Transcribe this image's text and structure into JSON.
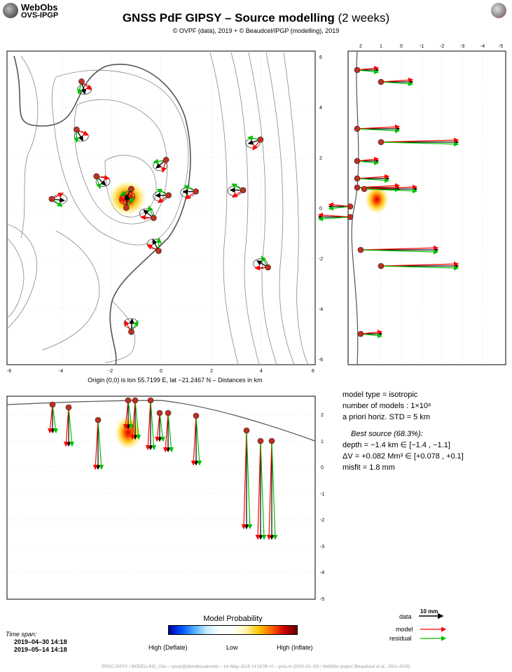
{
  "header": {
    "logo_line1": "WebObs",
    "logo_line2": "OVS-IPGP",
    "title_main": "GNSS PdF GIPSY – Source modelling",
    "title_light": " (2 weeks)",
    "subtitle": "© OVPF (data), 2019 + © Beaudcel/IPGP (modelling), 2019"
  },
  "origin_caption": "Origin (0,0) is lon 55.7199 E, lat −21.2467 N – Distances in km",
  "info": {
    "model_type": "model type = isotropic",
    "n_models": "number of models : 1×10⁶",
    "prior_std": "a priori horiz. STD = 5 km",
    "best_title": "Best source (68.3%):",
    "depth": "depth = −1.4 km ∈ [−1.4 , −1.1]",
    "dv": "ΔV = +0.082 Mm³ ∈ [+0.078 , +0.1]",
    "misfit": "misfit = 1.8 mm"
  },
  "probability": {
    "title": "Model Probability",
    "low_label": "Low",
    "high_deflate": "High (Deflate)",
    "high_inflate": "High (Inflate)"
  },
  "timespan": {
    "label": "Time span:",
    "start": "2019–04–30 14:18",
    "end": "2019–05–14 14:18"
  },
  "legend": {
    "scale_label": "10 mm",
    "data_label": "data",
    "model_label": "model",
    "residual_label": "residual",
    "data_color": "#000000",
    "model_color": "#ff0000",
    "residual_color": "#00c000"
  },
  "footer": "PROC.GIPSY / MODELLING_02w – sysop@pitondescalumets – 14–May–2019 14:18:56 +0 – gnss.m (2019–01–30) / WebObs project (Beauducel et al., 2001–2019)",
  "chart_data": [
    {
      "type": "scatter",
      "panel": "map view",
      "xlabel": "",
      "ylabel": "",
      "xlim": [
        -6.2,
        6.2
      ],
      "ylim": [
        -6.2,
        6.2
      ],
      "xticks": [
        -6,
        -4,
        -2,
        0,
        2,
        4,
        6
      ],
      "yticks": [
        -6,
        -4,
        -2,
        0,
        2,
        4,
        6
      ],
      "source": {
        "x": -1.4,
        "y": 0.3
      },
      "stations": [
        {
          "x": -3.2,
          "y": 5.0
        },
        {
          "x": -3.4,
          "y": 3.1
        },
        {
          "x": -2.6,
          "y": 1.25
        },
        {
          "x": -4.4,
          "y": 0.35
        },
        {
          "x": -1.2,
          "y": 0.75
        },
        {
          "x": -1.4,
          "y": 0.0
        },
        {
          "x": 0.3,
          "y": 0.5
        },
        {
          "x": -0.3,
          "y": -0.4
        },
        {
          "x": 0.2,
          "y": 1.9
        },
        {
          "x": 1.4,
          "y": 0.65
        },
        {
          "x": 3.3,
          "y": 0.7
        },
        {
          "x": 4.0,
          "y": 2.7
        },
        {
          "x": -0.1,
          "y": -1.7
        },
        {
          "x": 4.3,
          "y": -2.35
        },
        {
          "x": -1.2,
          "y": -4.9
        }
      ],
      "series": [
        {
          "name": "data"
        },
        {
          "name": "model"
        },
        {
          "name": "residual"
        }
      ]
    },
    {
      "type": "scatter",
      "panel": "N-S cross-section",
      "xlim": [
        2.6,
        -5.2
      ],
      "ylim": [
        -6.2,
        6.2
      ],
      "xticks": [
        2,
        1,
        0,
        -1,
        -2,
        -3,
        -4,
        -5
      ],
      "yticks": [
        -6,
        -4,
        -2,
        0,
        2,
        4,
        6
      ]
    },
    {
      "type": "scatter",
      "panel": "E-W cross-section",
      "xlim": [
        -6.2,
        6.2
      ],
      "ylim": [
        -5.0,
        2.6
      ],
      "yticks": [
        2,
        1,
        0,
        -1,
        -2,
        -3,
        -4,
        -5
      ]
    }
  ]
}
